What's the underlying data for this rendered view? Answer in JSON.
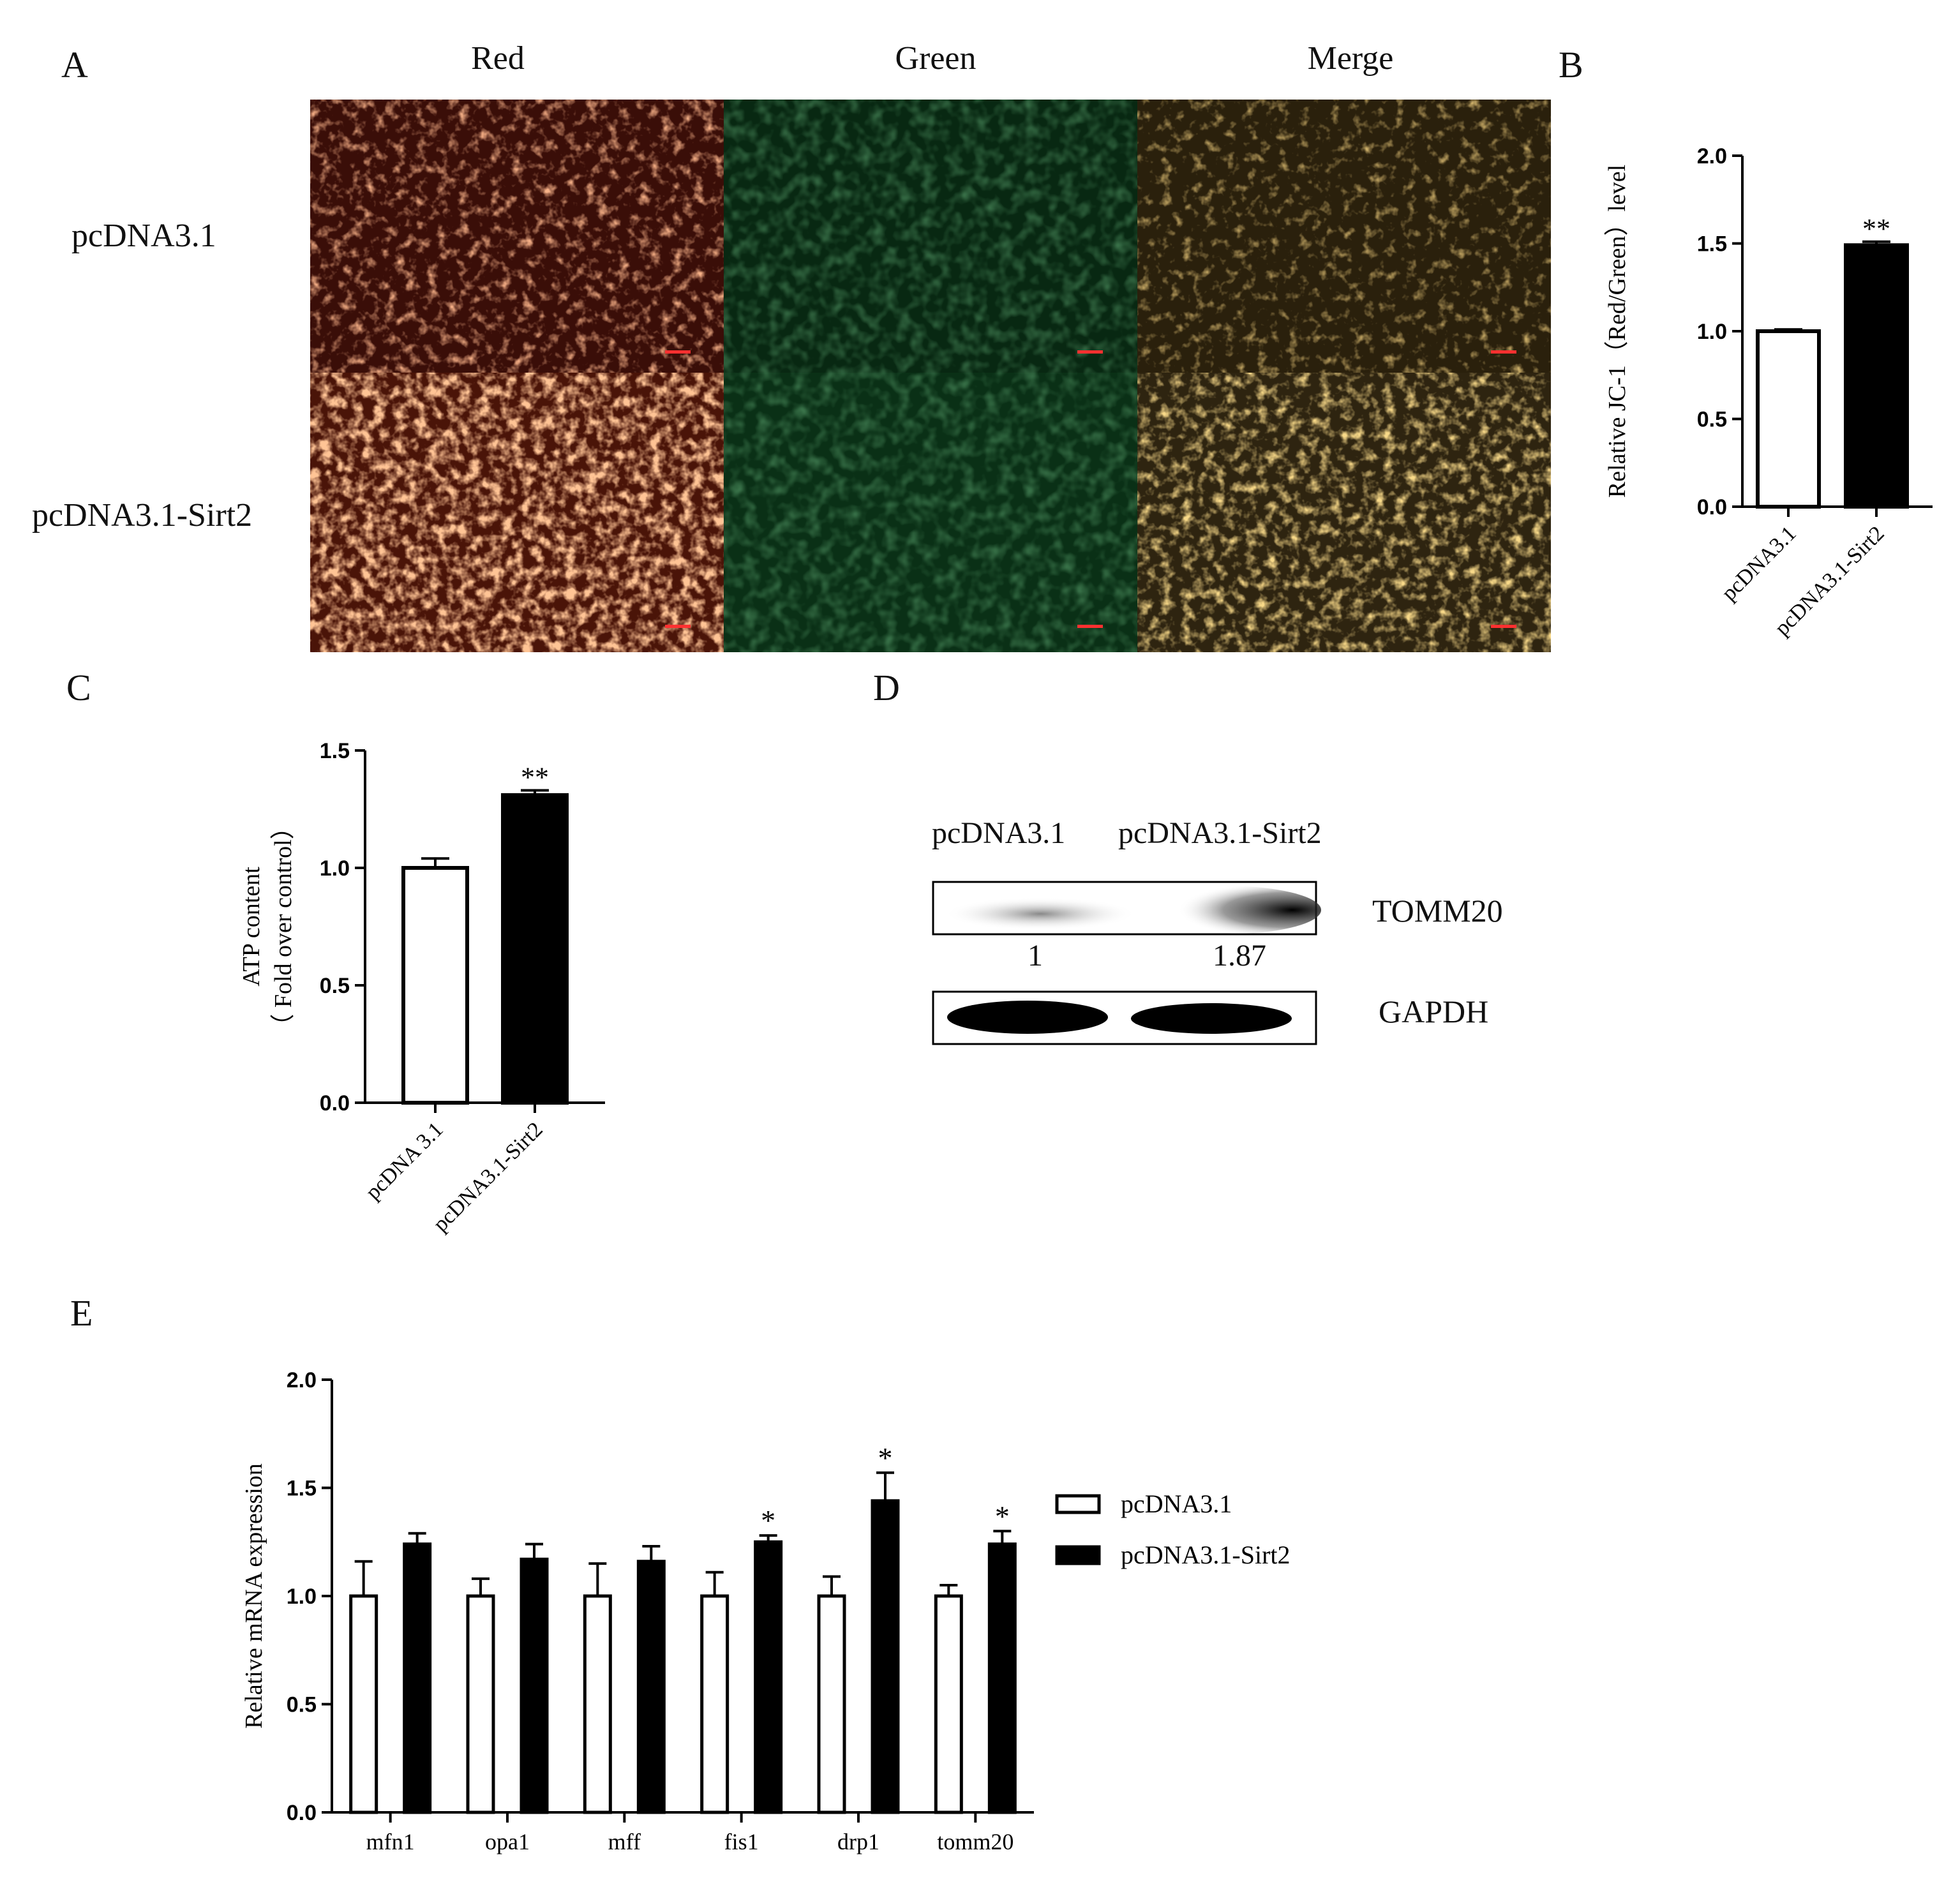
{
  "panel_letters": {
    "a": "A",
    "b": "B",
    "c": "C",
    "d": "D",
    "e": "E"
  },
  "panelA": {
    "columns": [
      "Red",
      "Green",
      "Merge"
    ],
    "rows": [
      "pcDNA3.1",
      "pcDNA3.1-Sirt2"
    ],
    "colors": {
      "red": "#a3361f",
      "green": "#0b3d14",
      "merge": "#5a4220"
    }
  },
  "panelD": {
    "lane_labels": [
      "pcDNA3.1",
      "pcDNA3.1-Sirt2"
    ],
    "bands": [
      "TOMM20",
      "GAPDH"
    ],
    "quant": [
      "1",
      "1.87"
    ]
  },
  "chart_data": [
    {
      "id": "B",
      "type": "bar",
      "categories": [
        "pcDNA3.1",
        "pcDNA3.1-Sirt2"
      ],
      "values": [
        1.0,
        1.49
      ],
      "errors": [
        0.01,
        0.02
      ],
      "significance": [
        "",
        "**"
      ],
      "fills": [
        "#ffffff",
        "#000000"
      ],
      "ylabel": "Relative JC-1（Red/Green）level",
      "ylim": [
        0,
        2.0
      ],
      "yticks": [
        "0.0",
        "0.5",
        "1.0",
        "1.5",
        "2.0"
      ]
    },
    {
      "id": "C",
      "type": "bar",
      "categories": [
        "pcDNA 3.1",
        "pcDNA3.1-Sirt2"
      ],
      "values": [
        1.0,
        1.31
      ],
      "errors": [
        0.04,
        0.02
      ],
      "significance": [
        "",
        "**"
      ],
      "fills": [
        "#ffffff",
        "#000000"
      ],
      "ylabel_lines": [
        "ATP content",
        "（ Fold over control）"
      ],
      "ylim": [
        0,
        1.5
      ],
      "yticks": [
        "0.0",
        "0.5",
        "1.0",
        "1.5"
      ]
    },
    {
      "id": "E",
      "type": "bar",
      "categories": [
        "mfn1",
        "opa1",
        "mff",
        "fis1",
        "drp1",
        "tomm20"
      ],
      "series": [
        {
          "name": "pcDNA3.1",
          "values": [
            1.0,
            1.0,
            1.0,
            1.0,
            1.0,
            1.0
          ],
          "errors": [
            0.16,
            0.08,
            0.15,
            0.11,
            0.09,
            0.05
          ],
          "color": "#ffffff"
        },
        {
          "name": "pcDNA3.1-Sirt2",
          "values": [
            1.24,
            1.17,
            1.16,
            1.25,
            1.44,
            1.24
          ],
          "errors": [
            0.05,
            0.07,
            0.07,
            0.03,
            0.13,
            0.06
          ],
          "color": "#000000"
        }
      ],
      "significance": [
        "",
        "",
        "",
        "*",
        "*",
        "*"
      ],
      "ylabel": "Relative mRNA expression",
      "ylim": [
        0,
        2.0
      ],
      "yticks": [
        "0.0",
        "0.5",
        "1.0",
        "1.5",
        "2.0"
      ],
      "legend": "right"
    }
  ]
}
